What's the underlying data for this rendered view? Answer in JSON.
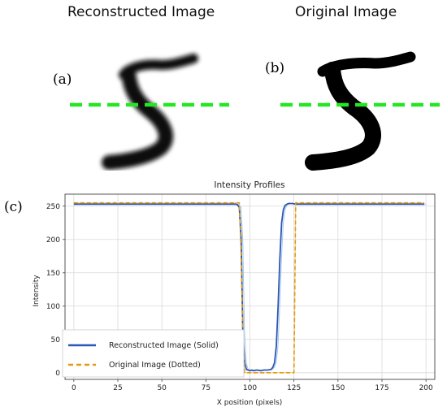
{
  "panels": {
    "a": {
      "tag": "(a)",
      "title": "Reconstructed Image"
    },
    "b": {
      "tag": "(b)",
      "title": "Original Image"
    },
    "c": {
      "tag": "(c)"
    }
  },
  "colors": {
    "scan_line": "#22e822",
    "reconstructed": "#2c56b5",
    "original": "#e29a10",
    "reconstructed_thin": "#9ec7ea",
    "original_thin": "#f3c78a",
    "digit_blur": "#111111",
    "digit_solid": "#000000"
  },
  "chart_data": {
    "type": "line",
    "title": "Intensity Profiles",
    "xlabel": "X position (pixels)",
    "ylabel": "Intensity",
    "xlim": [
      -5,
      205
    ],
    "ylim": [
      -10,
      268
    ],
    "xticks": [
      0,
      25,
      50,
      75,
      100,
      125,
      150,
      175,
      200
    ],
    "yticks": [
      0,
      50,
      100,
      150,
      200,
      250
    ],
    "grid": true,
    "legend_position": "lower-left",
    "series": [
      {
        "name": "Reconstructed Image (Solid)",
        "style": "solid",
        "x": [
          0,
          90,
          92,
          93,
          94,
          95,
          96,
          97,
          98,
          99,
          100,
          101,
          102,
          104,
          106,
          108,
          110,
          112,
          113,
          114,
          115,
          116,
          117,
          118,
          119,
          120,
          121,
          122,
          124,
          126,
          130,
          199
        ],
        "y": [
          253,
          253,
          253,
          252,
          248,
          200,
          60,
          15,
          5,
          4,
          3,
          4,
          3,
          4,
          3,
          4,
          4,
          5,
          8,
          15,
          40,
          100,
          170,
          225,
          245,
          251,
          253,
          254,
          254,
          253,
          253,
          253
        ]
      },
      {
        "name": "Original Image (Dotted)",
        "style": "dashed",
        "x": [
          0,
          93,
          94,
          95,
          96,
          97,
          98,
          124,
          125,
          126,
          127,
          199
        ],
        "y": [
          255,
          255,
          255,
          180,
          50,
          0,
          0,
          0,
          0,
          255,
          255,
          255
        ]
      }
    ]
  }
}
